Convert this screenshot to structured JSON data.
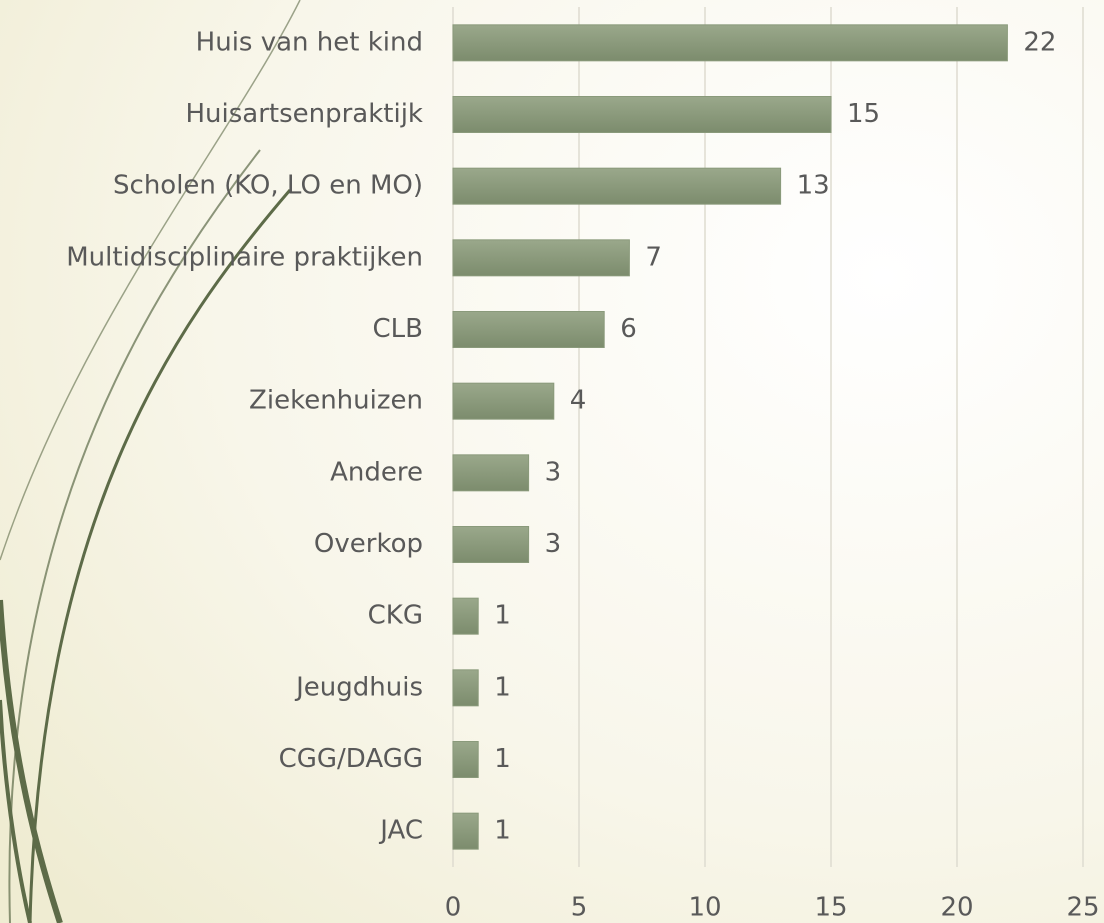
{
  "chart_data": {
    "type": "bar",
    "orientation": "horizontal",
    "categories": [
      "Huis van het kind",
      "Huisartsenpraktijk",
      "Scholen (KO, LO en MO)",
      "Multidisciplinaire praktijken",
      "CLB",
      "Ziekenhuizen",
      "Andere",
      "Overkop",
      "CKG",
      "Jeugdhuis",
      "CGG/DAGG",
      "JAC"
    ],
    "values": [
      22,
      15,
      13,
      7,
      6,
      4,
      3,
      3,
      1,
      1,
      1,
      1
    ],
    "color": "#8a9a7b",
    "xlim": [
      0,
      25
    ],
    "xticks": [
      0,
      5,
      10,
      15,
      20,
      25
    ],
    "grid": true
  }
}
